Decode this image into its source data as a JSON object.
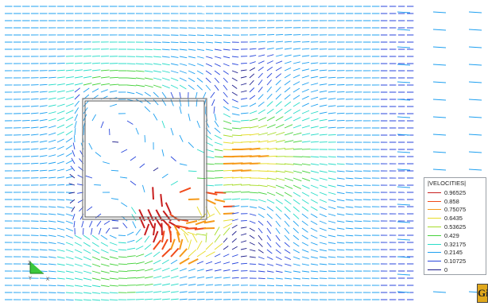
{
  "legend": {
    "title": "|VELOCITIES|",
    "entries": [
      {
        "label": "0.96525",
        "color": "#c81e1e"
      },
      {
        "label": "0.858",
        "color": "#f04a1a"
      },
      {
        "label": "0.75075",
        "color": "#f59a1a"
      },
      {
        "label": "0.6435",
        "color": "#e6dc28"
      },
      {
        "label": "0.53625",
        "color": "#a6dc28"
      },
      {
        "label": "0.429",
        "color": "#46d23c"
      },
      {
        "label": "0.32175",
        "color": "#28dcc8"
      },
      {
        "label": "0.2145",
        "color": "#1ea0f0"
      },
      {
        "label": "0.10725",
        "color": "#2846dc"
      },
      {
        "label": "0",
        "color": "#1e1e8c"
      }
    ]
  },
  "axes": {
    "y_label": "Y",
    "z_label": "Z",
    "x_label": "X"
  },
  "logo": {
    "text": "GiD"
  },
  "icons": {
    "axes": "axes-triad-icon",
    "logo": "gid-logo-icon"
  }
}
